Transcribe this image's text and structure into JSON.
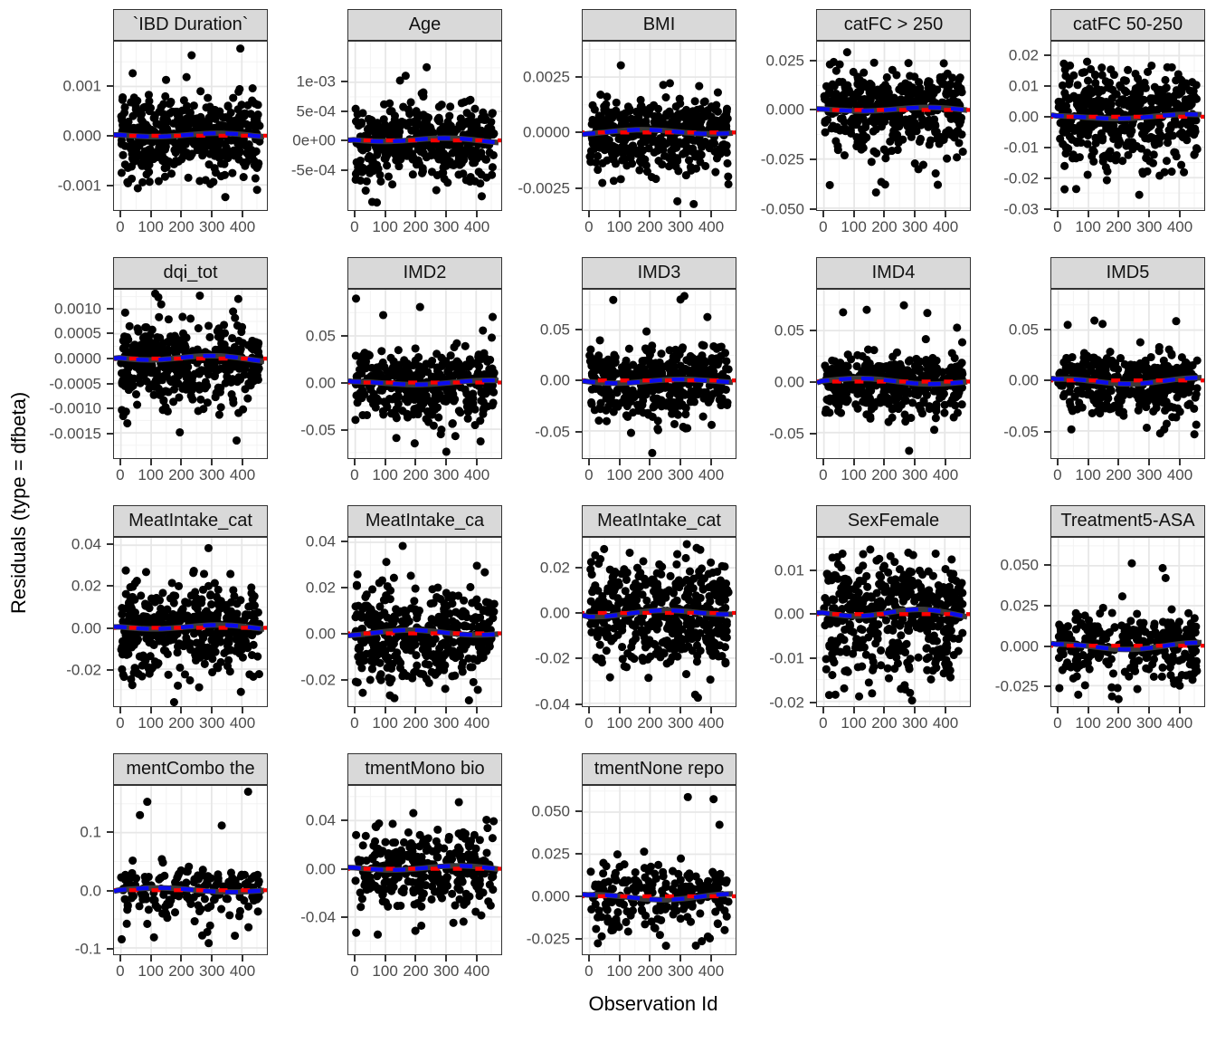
{
  "chart_data": {
    "type": "scatter",
    "faceted": true,
    "title": "",
    "x_title": "Observation Id",
    "y_title": "Residuals (type = dfbeta)",
    "legend": "none",
    "grid": true,
    "x_range": [
      -23,
      483
    ],
    "x_tick_values": [
      0,
      100,
      200,
      300,
      400
    ],
    "x_tick_labels": [
      "0",
      "100",
      "200",
      "300",
      "400"
    ],
    "x_minor_values": [
      50,
      150,
      250,
      350,
      450
    ],
    "colors": {
      "point": "#000000",
      "reference_line_red": "#FF0000",
      "smooth_line_blue": "#0B0BEE",
      "smooth_band": "#3B3B3B",
      "strip_bg": "#D9D9D9",
      "panel_border": "#333333",
      "grid_major": "#E7E7E7",
      "grid_minor": "#F3F3F3",
      "tick_text": "#4B4B4B"
    },
    "point_radius": 4.6,
    "facets": [
      {
        "label": "`IBD Duration`",
        "y_range": [
          -0.00151,
          0.00191
        ],
        "y_tick_values": [
          0.001,
          0,
          -0.001
        ],
        "y_tick_labels": [
          "0.001",
          "0.000",
          "-0.001"
        ],
        "n_points": 440,
        "sd_up": 0.00038,
        "sd_down": 0.00042,
        "n_outliers": 5,
        "seed": 11
      },
      {
        "label": "Age",
        "y_range": [
          -0.0012,
          0.0017
        ],
        "y_tick_values": [
          0.001,
          0.0005,
          0,
          -0.0005
        ],
        "y_tick_labels": [
          "1e-03",
          "5e-04",
          "0e+00",
          "-5e-04"
        ],
        "n_points": 440,
        "sd_up": 0.00032,
        "sd_down": 0.00034,
        "n_outliers": 5,
        "seed": 22
      },
      {
        "label": "BMI",
        "y_range": [
          -0.0035,
          0.0041
        ],
        "y_tick_values": [
          0.0025,
          0,
          -0.0025
        ],
        "y_tick_labels": [
          "0.0025",
          "0.0000",
          "-0.0025"
        ],
        "n_points": 440,
        "sd_up": 0.0007,
        "sd_down": 0.0009,
        "n_outliers": 6,
        "seed": 33
      },
      {
        "label": "catFC > 250",
        "y_range": [
          -0.051,
          0.0348
        ],
        "y_tick_values": [
          0.025,
          0,
          -0.025,
          -0.05
        ],
        "y_tick_labels": [
          "0.025",
          "0.000",
          "-0.025",
          "-0.050"
        ],
        "n_points": 440,
        "sd_up": 0.009,
        "sd_down": 0.012,
        "n_outliers": 5,
        "seed": 44
      },
      {
        "label": "catFC 50-250",
        "y_range": [
          -0.0306,
          0.0246
        ],
        "y_tick_values": [
          0.02,
          0.01,
          0,
          -0.01,
          -0.02,
          -0.03
        ],
        "y_tick_labels": [
          "0.02",
          "0.01",
          "0.00",
          "-0.01",
          "-0.02",
          "-0.03"
        ],
        "n_points": 450,
        "sd_up": 0.0075,
        "sd_down": 0.0085,
        "n_outliers": 4,
        "seed": 55
      },
      {
        "label": "dqi_tot",
        "y_range": [
          -0.00201,
          0.00139
        ],
        "y_tick_values": [
          0.001,
          0.0005,
          0,
          -0.0005,
          -0.001,
          -0.0015
        ],
        "y_tick_labels": [
          "0.0010",
          "0.0005",
          "0.0000",
          "-0.0005",
          "-0.0010",
          "-0.0015"
        ],
        "n_points": 450,
        "sd_up": 0.00036,
        "sd_down": 0.00042,
        "n_outliers": 5,
        "seed": 66
      },
      {
        "label": "IMD2",
        "y_range": [
          -0.081,
          0.0995
        ],
        "y_tick_values": [
          0.05,
          0,
          -0.05
        ],
        "y_tick_labels": [
          "0.05",
          "0.00",
          "-0.05"
        ],
        "n_points": 400,
        "sd_up": 0.016,
        "sd_down": 0.022,
        "n_outliers": 5,
        "seed": 77
      },
      {
        "label": "IMD3",
        "y_range": [
          -0.077,
          0.09
        ],
        "y_tick_values": [
          0.05,
          0,
          -0.05
        ],
        "y_tick_labels": [
          "0.05",
          "0.00",
          "-0.05"
        ],
        "n_points": 400,
        "sd_up": 0.016,
        "sd_down": 0.021,
        "n_outliers": 5,
        "seed": 88
      },
      {
        "label": "IMD4",
        "y_range": [
          -0.075,
          0.09
        ],
        "y_tick_values": [
          0.05,
          0,
          -0.05
        ],
        "y_tick_labels": [
          "0.05",
          "0.00",
          "-0.05"
        ],
        "n_points": 400,
        "sd_up": 0.013,
        "sd_down": 0.018,
        "n_outliers": 6,
        "seed": 99
      },
      {
        "label": "IMD5",
        "y_range": [
          -0.077,
          0.09
        ],
        "y_tick_values": [
          0.05,
          0,
          -0.05
        ],
        "y_tick_labels": [
          "0.05",
          "0.00",
          "-0.05"
        ],
        "n_points": 410,
        "sd_up": 0.013,
        "sd_down": 0.018,
        "n_outliers": 6,
        "seed": 110
      },
      {
        "label": "MeatIntake_cat",
        "y_range": [
          -0.038,
          0.0436
        ],
        "y_tick_values": [
          0.04,
          0.02,
          0,
          -0.02
        ],
        "y_tick_labels": [
          "0.04",
          "0.02",
          "0.00",
          "-0.02"
        ],
        "n_points": 420,
        "sd_up": 0.0105,
        "sd_down": 0.0115,
        "n_outliers": 3,
        "seed": 121
      },
      {
        "label": "MeatIntake_ca",
        "y_range": [
          -0.032,
          0.042
        ],
        "y_tick_values": [
          0.04,
          0.02,
          0,
          -0.02
        ],
        "y_tick_labels": [
          "0.04",
          "0.02",
          "0.00",
          "-0.02"
        ],
        "n_points": 420,
        "sd_up": 0.0105,
        "sd_down": 0.0115,
        "n_outliers": 3,
        "seed": 132
      },
      {
        "label": "MeatIntake_cat",
        "y_range": [
          -0.0413,
          0.0333
        ],
        "y_tick_values": [
          0.02,
          0,
          -0.02,
          -0.04
        ],
        "y_tick_labels": [
          "0.02",
          "0.00",
          "-0.02",
          "-0.04"
        ],
        "n_points": 430,
        "sd_up": 0.011,
        "sd_down": 0.0115,
        "n_outliers": 3,
        "seed": 143
      },
      {
        "label": "SexFemale",
        "y_range": [
          -0.0211,
          0.0175
        ],
        "y_tick_values": [
          0.01,
          0,
          -0.01,
          -0.02
        ],
        "y_tick_labels": [
          "0.01",
          "0.00",
          "-0.01",
          "-0.02"
        ],
        "n_points": 460,
        "sd_up": 0.0062,
        "sd_down": 0.0075,
        "n_outliers": 3,
        "wave_amp": 4,
        "seed": 154
      },
      {
        "label": "Treatment5-ASA",
        "y_range": [
          -0.0378,
          0.0675
        ],
        "y_tick_values": [
          0.05,
          0.025,
          0,
          -0.025
        ],
        "y_tick_labels": [
          "0.050",
          "0.025",
          "0.000",
          "-0.025"
        ],
        "n_points": 310,
        "sd_up": 0.009,
        "sd_down": 0.011,
        "n_outliers": 5,
        "seed": 165
      },
      {
        "label": "mentCombo the",
        "y_range": [
          -0.111,
          0.181
        ],
        "y_tick_values": [
          0.1,
          0,
          -0.1
        ],
        "y_tick_labels": [
          "0.1",
          "0.0",
          "-0.1"
        ],
        "n_points": 175,
        "sd_up": 0.02,
        "sd_down": 0.028,
        "n_outliers": 8,
        "seed": 176
      },
      {
        "label": "tmentMono bio",
        "y_range": [
          -0.071,
          0.0688
        ],
        "y_tick_values": [
          0.04,
          0,
          -0.04
        ],
        "y_tick_labels": [
          "0.04",
          "0.00",
          "-0.04"
        ],
        "n_points": 310,
        "sd_up": 0.017,
        "sd_down": 0.017,
        "n_outliers": 4,
        "seed": 187
      },
      {
        "label": "tmentNone repo",
        "y_range": [
          -0.0344,
          0.0656
        ],
        "y_tick_values": [
          0.05,
          0.025,
          0,
          -0.025
        ],
        "y_tick_labels": [
          "0.050",
          "0.025",
          "0.000",
          "-0.025"
        ],
        "n_points": 215,
        "sd_up": 0.0095,
        "sd_down": 0.0115,
        "n_outliers": 5,
        "seed": 198
      }
    ]
  }
}
